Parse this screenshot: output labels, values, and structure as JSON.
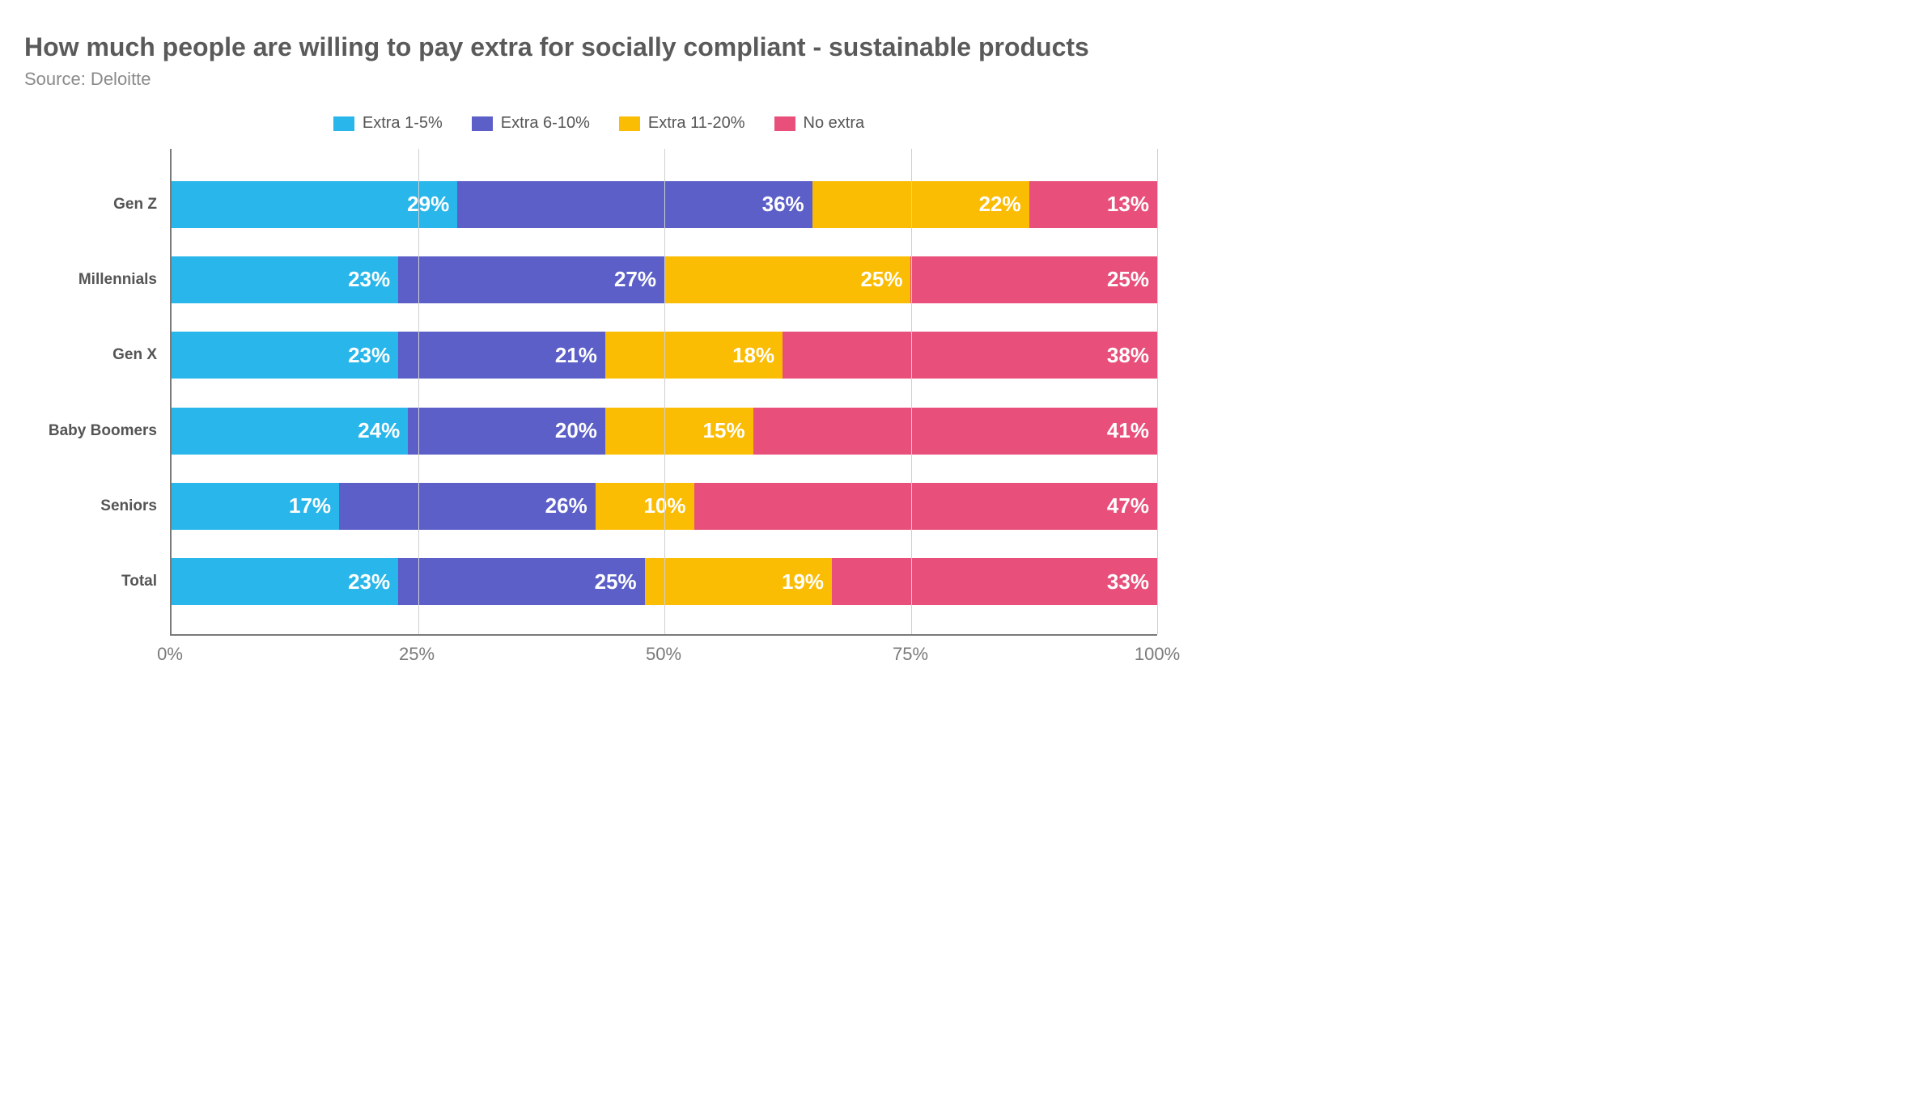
{
  "title": "How much people are willing to pay extra for socially compliant - sustainable products",
  "subtitle": "Source: Deloitte",
  "chart": {
    "type": "stacked_horizontal_bar_100pct",
    "background_color": "#ffffff",
    "axis_color": "#7a7a7a",
    "grid_color": "#d0d0d0",
    "title_fontsize": 32,
    "title_color": "#5a5a5a",
    "subtitle_fontsize": 22,
    "subtitle_color": "#8a8a8a",
    "legend_fontsize": 20,
    "ylabel_fontsize": 19,
    "value_label_fontsize": 26,
    "value_label_color": "#ffffff",
    "xtick_fontsize": 22,
    "bar_height_ratio": 0.62,
    "xlim": [
      0,
      100
    ],
    "xticks": [
      {
        "pos": 0,
        "label": "0%"
      },
      {
        "pos": 25,
        "label": "25%"
      },
      {
        "pos": 50,
        "label": "50%"
      },
      {
        "pos": 75,
        "label": "75%"
      },
      {
        "pos": 100,
        "label": "100%"
      }
    ],
    "series": [
      {
        "key": "extra_1_5",
        "label": "Extra 1-5%",
        "color": "#29b6ea"
      },
      {
        "key": "extra_6_10",
        "label": "Extra 6-10%",
        "color": "#5b5fc7"
      },
      {
        "key": "extra_11_20",
        "label": "Extra 11-20%",
        "color": "#fbbc04"
      },
      {
        "key": "no_extra",
        "label": "No extra",
        "color": "#e84f7a"
      }
    ],
    "categories": [
      {
        "label": "Gen Z",
        "values": {
          "extra_1_5": 29,
          "extra_6_10": 36,
          "extra_11_20": 22,
          "no_extra": 13
        }
      },
      {
        "label": "Millennials",
        "values": {
          "extra_1_5": 23,
          "extra_6_10": 27,
          "extra_11_20": 25,
          "no_extra": 25
        }
      },
      {
        "label": "Gen X",
        "values": {
          "extra_1_5": 23,
          "extra_6_10": 21,
          "extra_11_20": 18,
          "no_extra": 38
        }
      },
      {
        "label": "Baby Boomers",
        "values": {
          "extra_1_5": 24,
          "extra_6_10": 20,
          "extra_11_20": 15,
          "no_extra": 41
        }
      },
      {
        "label": "Seniors",
        "values": {
          "extra_1_5": 17,
          "extra_6_10": 26,
          "extra_11_20": 10,
          "no_extra": 47
        }
      },
      {
        "label": "Total",
        "values": {
          "extra_1_5": 23,
          "extra_6_10": 25,
          "extra_11_20": 19,
          "no_extra": 33
        }
      }
    ]
  }
}
